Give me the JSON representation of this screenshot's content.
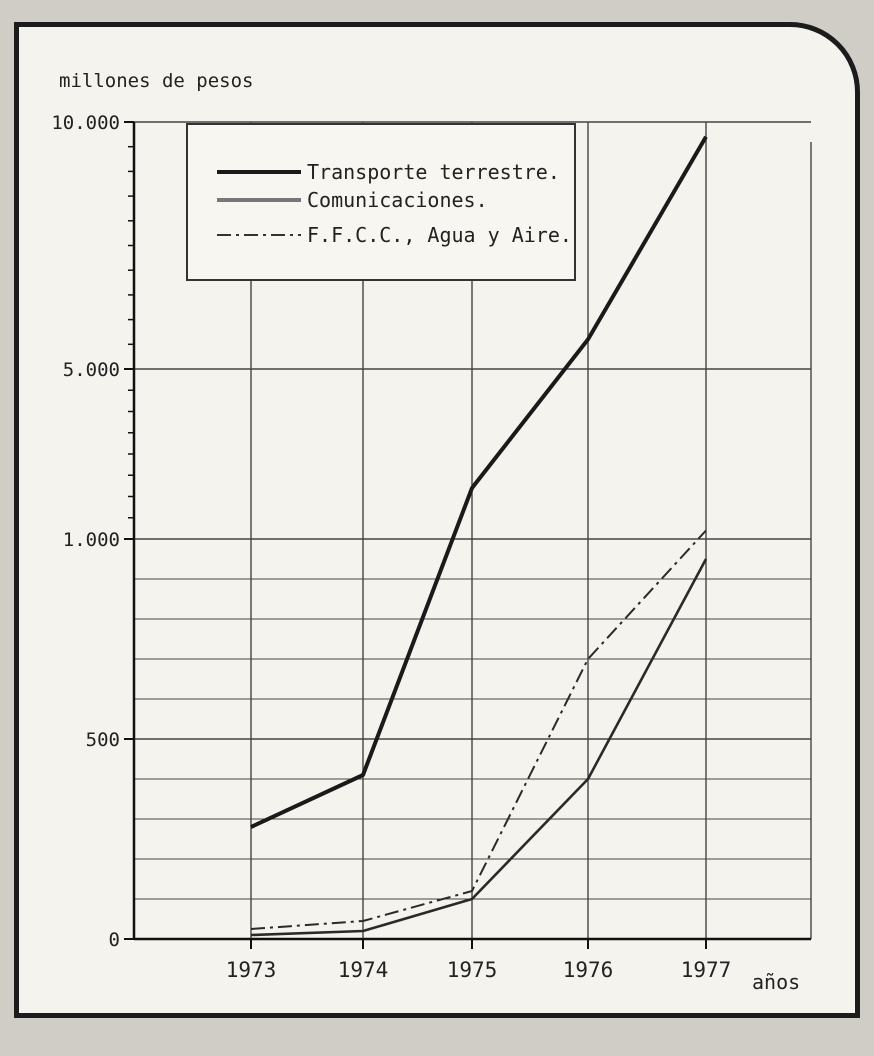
{
  "chart_data": {
    "type": "line",
    "ylabel": "millones de pesos",
    "xlabel": "años",
    "x": [
      "1973",
      "1974",
      "1975",
      "1976",
      "1977"
    ],
    "y_ticks": [
      {
        "value": 0,
        "label": "0"
      },
      {
        "value": 500,
        "label": "500"
      },
      {
        "value": 1000,
        "label": "1.000"
      },
      {
        "value": 5000,
        "label": "5.000"
      },
      {
        "value": 10000,
        "label": "10.000"
      }
    ],
    "series": [
      {
        "name": "Transporte terrestre.",
        "style": "solid-thick",
        "values": [
          280,
          410,
          2200,
          5600,
          9700
        ]
      },
      {
        "name": "Comunicaciones.",
        "style": "solid-thin",
        "values": [
          10,
          20,
          100,
          400,
          950
        ]
      },
      {
        "name": "F.F.C.C., Agua y Aire.",
        "style": "dash-dot",
        "values": [
          25,
          45,
          120,
          700,
          1200
        ]
      }
    ],
    "legend_position": "top-left",
    "grid": true
  }
}
